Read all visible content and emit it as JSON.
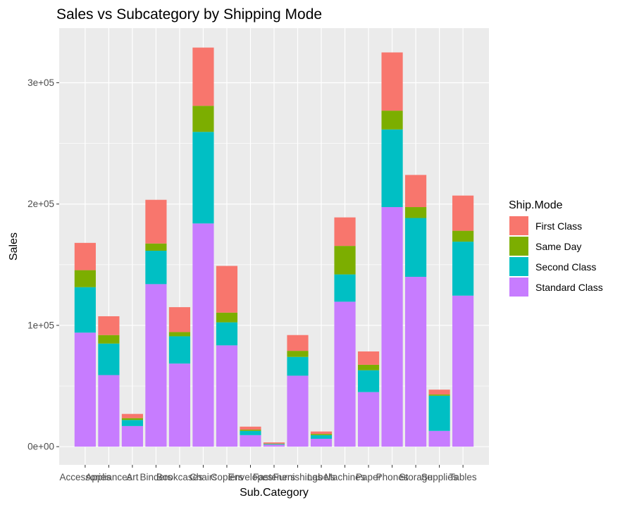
{
  "chart_data": {
    "type": "bar",
    "stacked": true,
    "title": "Sales vs Subcategory by Shipping Mode",
    "xlabel": "Sub.Category",
    "ylabel": "Sales",
    "ylim": [
      -15000,
      345000
    ],
    "y_ticks": [
      0,
      100000,
      200000,
      300000
    ],
    "y_tick_labels": [
      "0e+00",
      "1e+05",
      "2e+05",
      "3e+05"
    ],
    "grid": true,
    "legend": {
      "title": "Ship.Mode",
      "position": "right"
    },
    "categories": [
      "Accessories",
      "Appliances",
      "Art",
      "Binders",
      "Bookcases",
      "Chairs",
      "Copiers",
      "Envelopes",
      "Fasteners",
      "Furnishings",
      "Labels",
      "Machines",
      "Paper",
      "Phones",
      "Storage",
      "Supplies",
      "Tables"
    ],
    "series": [
      {
        "name": "Standard Class",
        "color": "#C77CFF",
        "values": [
          94000,
          59000,
          17000,
          134000,
          68500,
          184000,
          83500,
          9500,
          1700,
          58500,
          6500,
          119500,
          45000,
          197500,
          140000,
          13000,
          124500
        ]
      },
      {
        "name": "Second Class",
        "color": "#00BFC4",
        "values": [
          37500,
          26000,
          5000,
          27500,
          22500,
          75500,
          19000,
          3500,
          500,
          15500,
          3000,
          22500,
          18000,
          64000,
          48500,
          29000,
          44500
        ]
      },
      {
        "name": "Same Day",
        "color": "#7CAE00",
        "values": [
          14000,
          7000,
          1500,
          6000,
          3500,
          21500,
          8000,
          1000,
          300,
          5000,
          1000,
          23500,
          4500,
          15500,
          9000,
          1000,
          9000
        ]
      },
      {
        "name": "First Class",
        "color": "#F8766D",
        "values": [
          22500,
          15500,
          3500,
          36000,
          20500,
          48000,
          38500,
          2500,
          1000,
          13000,
          2000,
          23500,
          11000,
          48000,
          26500,
          4000,
          29000
        ]
      }
    ],
    "legend_order": [
      "First Class",
      "Same Day",
      "Second Class",
      "Standard Class"
    ]
  }
}
